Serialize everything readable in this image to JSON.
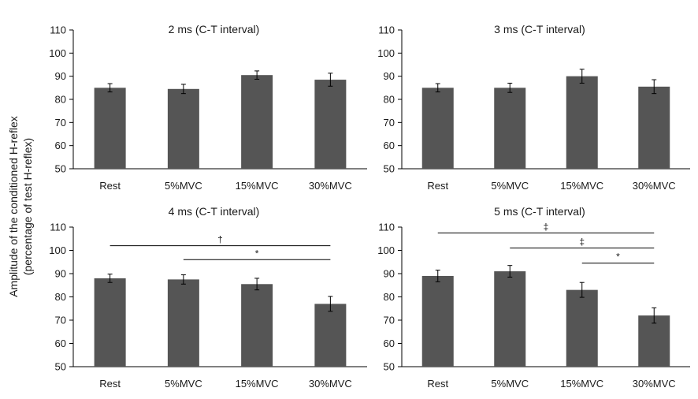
{
  "figure": {
    "ylabel_line1": "Amplitude of the conditioned  H-reflex",
    "ylabel_line2": "(percentage of  test H-reflex)"
  },
  "style": {
    "bar_color": "#555555",
    "axis_color": "#000000"
  },
  "chart_data": [
    {
      "type": "bar",
      "title": "2 ms (C-T interval)",
      "categories": [
        "Rest",
        "5%MVC",
        "15%MVC",
        "30%MVC"
      ],
      "values": [
        85,
        84.5,
        90.5,
        88.5
      ],
      "errors": [
        1.8,
        2.0,
        1.8,
        2.8
      ],
      "ylim": [
        50,
        110
      ],
      "yticks": [
        50,
        60,
        70,
        80,
        90,
        100,
        110
      ],
      "significance": []
    },
    {
      "type": "bar",
      "title": "3 ms (C-T interval)",
      "categories": [
        "Rest",
        "5%MVC",
        "15%MVC",
        "30%MVC"
      ],
      "values": [
        85,
        85,
        90,
        85.5
      ],
      "errors": [
        1.8,
        2.0,
        3.0,
        3.0
      ],
      "ylim": [
        50,
        110
      ],
      "yticks": [
        50,
        60,
        70,
        80,
        90,
        100,
        110
      ],
      "significance": []
    },
    {
      "type": "bar",
      "title": "4 ms (C-T interval)",
      "categories": [
        "Rest",
        "5%MVC",
        "15%MVC",
        "30%MVC"
      ],
      "values": [
        88,
        87.5,
        85.5,
        77
      ],
      "errors": [
        1.8,
        2.0,
        2.5,
        3.2
      ],
      "ylim": [
        50,
        110
      ],
      "yticks": [
        50,
        60,
        70,
        80,
        90,
        100,
        110
      ],
      "significance": [
        {
          "from": 0,
          "to": 3,
          "level": 102,
          "symbol": "†"
        },
        {
          "from": 1,
          "to": 3,
          "level": 96,
          "symbol": "*"
        }
      ]
    },
    {
      "type": "bar",
      "title": "5 ms (C-T interval)",
      "categories": [
        "Rest",
        "5%MVC",
        "15%MVC",
        "30%MVC"
      ],
      "values": [
        89,
        91,
        83,
        72
      ],
      "errors": [
        2.5,
        2.5,
        3.2,
        3.3
      ],
      "ylim": [
        50,
        110
      ],
      "yticks": [
        50,
        60,
        70,
        80,
        90,
        100,
        110
      ],
      "significance": [
        {
          "from": 0,
          "to": 3,
          "level": 107.5,
          "symbol": "‡"
        },
        {
          "from": 1,
          "to": 3,
          "level": 101,
          "symbol": "‡"
        },
        {
          "from": 2,
          "to": 3,
          "level": 94.5,
          "symbol": "*"
        }
      ]
    }
  ]
}
